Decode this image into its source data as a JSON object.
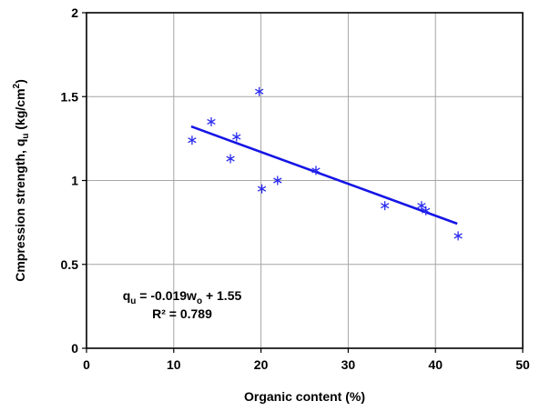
{
  "chart_data": {
    "type": "scatter",
    "xlabel": "Organic content (%)",
    "ylabel_parts": {
      "prefix": "Cmpression strength, q",
      "sub": "u",
      "mid": " (kg/cm",
      "sup": "2",
      "suffix": ")"
    },
    "xlim": [
      0,
      50
    ],
    "ylim": [
      0,
      2
    ],
    "xticks": [
      0,
      10,
      20,
      30,
      40,
      50
    ],
    "yticks": [
      0,
      0.5,
      1,
      1.5,
      2
    ],
    "xtick_labels": [
      "0",
      "10",
      "20",
      "30",
      "40",
      "50"
    ],
    "ytick_labels": [
      "0",
      "0.5",
      "1",
      "1.5",
      "2"
    ],
    "grid": true,
    "series": [
      {
        "marker": "asterisk",
        "color": "#2a2af0",
        "points": [
          {
            "x": 12.1,
            "y": 1.24
          },
          {
            "x": 14.3,
            "y": 1.35
          },
          {
            "x": 16.5,
            "y": 1.13
          },
          {
            "x": 17.2,
            "y": 1.26
          },
          {
            "x": 19.8,
            "y": 1.53
          },
          {
            "x": 20.1,
            "y": 0.95
          },
          {
            "x": 21.9,
            "y": 1.0
          },
          {
            "x": 26.3,
            "y": 1.06
          },
          {
            "x": 34.2,
            "y": 0.85
          },
          {
            "x": 38.4,
            "y": 0.85
          },
          {
            "x": 38.9,
            "y": 0.82
          },
          {
            "x": 42.6,
            "y": 0.67
          }
        ]
      }
    ],
    "trendline": {
      "color": "#1515e6",
      "x_start": 12,
      "x_end": 42.5,
      "slope": -0.019,
      "intercept": 1.55
    },
    "annotation": {
      "eq_prefix": "q",
      "eq_sub1": "u",
      "eq_mid": " = -0.019w",
      "eq_sub2": "o",
      "eq_suffix": " + 1.55",
      "r2": "R² = 0.789"
    }
  }
}
